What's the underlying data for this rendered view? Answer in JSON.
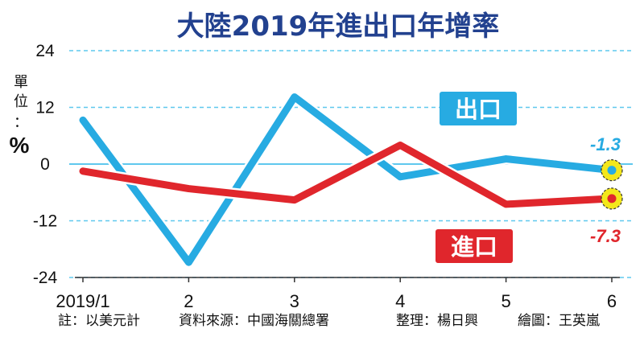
{
  "colors": {
    "title": "#22418f",
    "export_line": "#27abe2",
    "import_line": "#e0262c",
    "grid": "#5fc8ee",
    "highlight": "#f3e71a"
  },
  "chart_data": {
    "type": "line",
    "title": "大陸2019年進出口年增率",
    "unit_label": "單位：",
    "unit_symbol": "%",
    "categories": [
      "2019/1",
      "2",
      "3",
      "4",
      "5",
      "6"
    ],
    "ylim": [
      -24,
      24
    ],
    "yticks": [
      24,
      12,
      0,
      -12,
      -24
    ],
    "grid": true,
    "series": [
      {
        "name": "出口",
        "values": [
          9.3,
          -20.8,
          14.2,
          -2.7,
          1.1,
          -1.3
        ],
        "end_label": "-1.3"
      },
      {
        "name": "進口",
        "values": [
          -1.5,
          -5.2,
          -7.6,
          4.0,
          -8.5,
          -7.3
        ],
        "end_label": "-7.3"
      }
    ]
  },
  "footer": {
    "note": "註：以美元計",
    "source": "資料來源：中國海關總署",
    "compiler": "整理：楊日興",
    "illustrator": "繪圖：王英嵐"
  }
}
